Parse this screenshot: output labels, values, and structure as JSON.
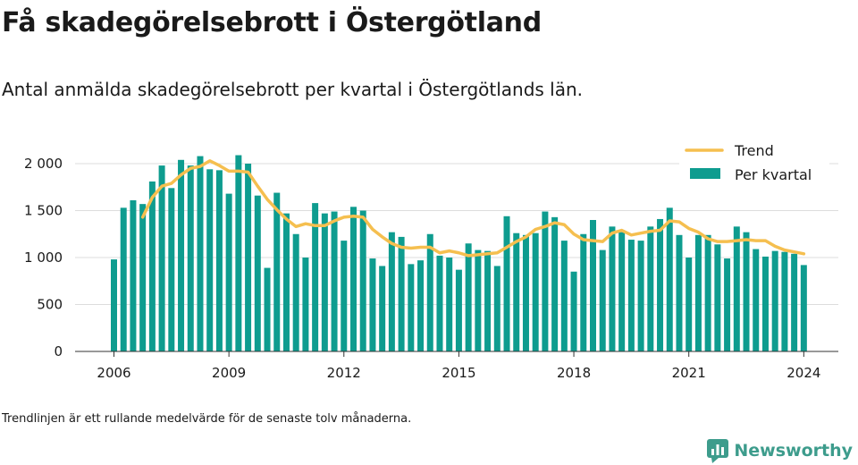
{
  "header": {
    "title": "Få skadegörelsebrott i Östergötland",
    "subtitle": "Antal anmälda skadegörelsebrott per kvartal i Östergötlands län."
  },
  "footer": {
    "note": "Trendlinjen är ett rullande medelvärde för de senaste tolv månaderna.",
    "brand": "Newsworthy"
  },
  "colors": {
    "bars": "#0e9c8f",
    "trend": "#f5bf4f",
    "grid": "#dddddd",
    "brand": "#3d9c8c"
  },
  "chart_data": {
    "type": "bar",
    "categories": [
      "2006 Q1",
      "2006 Q2",
      "2006 Q3",
      "2006 Q4",
      "2007 Q1",
      "2007 Q2",
      "2007 Q3",
      "2007 Q4",
      "2008 Q1",
      "2008 Q2",
      "2008 Q3",
      "2008 Q4",
      "2009 Q1",
      "2009 Q2",
      "2009 Q3",
      "2009 Q4",
      "2010 Q1",
      "2010 Q2",
      "2010 Q3",
      "2010 Q4",
      "2011 Q1",
      "2011 Q2",
      "2011 Q3",
      "2011 Q4",
      "2012 Q1",
      "2012 Q2",
      "2012 Q3",
      "2012 Q4",
      "2013 Q1",
      "2013 Q2",
      "2013 Q3",
      "2013 Q4",
      "2014 Q1",
      "2014 Q2",
      "2014 Q3",
      "2014 Q4",
      "2015 Q1",
      "2015 Q2",
      "2015 Q3",
      "2015 Q4",
      "2016 Q1",
      "2016 Q2",
      "2016 Q3",
      "2016 Q4",
      "2017 Q1",
      "2017 Q2",
      "2017 Q3",
      "2017 Q4",
      "2018 Q1",
      "2018 Q2",
      "2018 Q3",
      "2018 Q4",
      "2019 Q1",
      "2019 Q2",
      "2019 Q3",
      "2019 Q4",
      "2020 Q1",
      "2020 Q2",
      "2020 Q3",
      "2020 Q4",
      "2021 Q1",
      "2021 Q2",
      "2021 Q3",
      "2021 Q4",
      "2022 Q1",
      "2022 Q2",
      "2022 Q3",
      "2022 Q4",
      "2023 Q1",
      "2023 Q2",
      "2023 Q3",
      "2023 Q4",
      "2024 Q1"
    ],
    "x_ticks": [
      "2006",
      "2009",
      "2012",
      "2015",
      "2018",
      "2021",
      "2024"
    ],
    "y_ticks": [
      "0",
      "500",
      "1 000",
      "1 500",
      "2 000"
    ],
    "ylim": [
      0,
      2100
    ],
    "series": [
      {
        "name": "Per kvartal",
        "type": "bar",
        "values": [
          980,
          1530,
          1610,
          1570,
          1810,
          1980,
          1740,
          2040,
          1980,
          2080,
          1940,
          1930,
          1680,
          2090,
          2000,
          1660,
          890,
          1690,
          1470,
          1250,
          1000,
          1580,
          1470,
          1490,
          1180,
          1540,
          1500,
          990,
          910,
          1270,
          1220,
          930,
          970,
          1250,
          1020,
          1000,
          870,
          1150,
          1080,
          1070,
          910,
          1440,
          1260,
          1240,
          1260,
          1490,
          1430,
          1180,
          850,
          1250,
          1400,
          1080,
          1330,
          1270,
          1190,
          1180,
          1330,
          1410,
          1530,
          1240,
          1000,
          1240,
          1240,
          1140,
          990,
          1330,
          1270,
          1090,
          1010,
          1070,
          1060,
          1040,
          920
        ]
      },
      {
        "name": "Trend",
        "type": "line",
        "values": [
          null,
          null,
          null,
          1430,
          1640,
          1760,
          1790,
          1880,
          1950,
          1970,
          2030,
          1980,
          1920,
          1920,
          1910,
          1760,
          1620,
          1510,
          1410,
          1330,
          1360,
          1340,
          1340,
          1390,
          1430,
          1440,
          1430,
          1300,
          1220,
          1150,
          1110,
          1100,
          1110,
          1110,
          1050,
          1070,
          1050,
          1020,
          1030,
          1040,
          1050,
          1110,
          1170,
          1220,
          1300,
          1330,
          1370,
          1350,
          1250,
          1190,
          1180,
          1170,
          1260,
          1290,
          1240,
          1260,
          1280,
          1290,
          1390,
          1380,
          1310,
          1270,
          1200,
          1170,
          1170,
          1180,
          1190,
          1180,
          1180,
          1120,
          1080,
          1060,
          1040
        ]
      }
    ]
  }
}
